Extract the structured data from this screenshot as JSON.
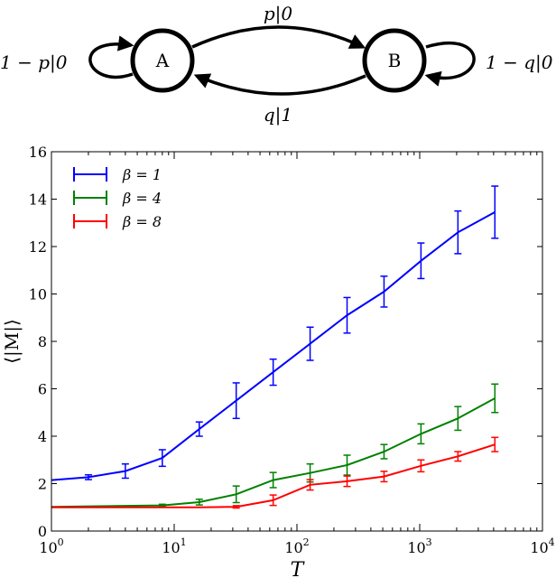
{
  "diagram": {
    "state_a": "A",
    "state_b": "B",
    "edge_ab": "p|0",
    "edge_ba": "q|1",
    "loop_a": "1 − p|0",
    "loop_b": "1 − q|0"
  },
  "chart_data": {
    "type": "line",
    "xscale": "log",
    "xlabel": "T",
    "ylabel": "⟨|M|⟩",
    "xlim": [
      1,
      10000
    ],
    "ylim": [
      0,
      16
    ],
    "yticks": [
      0,
      2,
      4,
      6,
      8,
      10,
      12,
      14,
      16
    ],
    "xticks": [
      {
        "value": 1,
        "base": "10",
        "exp": "0"
      },
      {
        "value": 10,
        "base": "10",
        "exp": "1"
      },
      {
        "value": 100,
        "base": "10",
        "exp": "2"
      },
      {
        "value": 1000,
        "base": "10",
        "exp": "3"
      },
      {
        "value": 10000,
        "base": "10",
        "exp": "4"
      }
    ],
    "grid": false,
    "legend": "top-left",
    "series": [
      {
        "name": "β = 1",
        "color": "#0000ff",
        "x": [
          1,
          2,
          4,
          8,
          16,
          32,
          64,
          128,
          256,
          512,
          1024,
          2048,
          4096
        ],
        "y": [
          2.15,
          2.27,
          2.53,
          3.08,
          4.3,
          5.5,
          6.7,
          7.9,
          9.1,
          10.1,
          11.4,
          12.6,
          13.45
        ],
        "err": [
          0.0,
          0.1,
          0.3,
          0.35,
          0.3,
          0.75,
          0.55,
          0.7,
          0.75,
          0.65,
          0.75,
          0.9,
          1.1
        ]
      },
      {
        "name": "β = 4",
        "color": "#008000",
        "x": [
          1,
          8,
          16,
          32,
          64,
          128,
          256,
          512,
          1024,
          2048,
          4096
        ],
        "y": [
          1.02,
          1.08,
          1.22,
          1.55,
          2.15,
          2.45,
          2.78,
          3.35,
          4.1,
          4.75,
          5.6
        ],
        "err": [
          0.0,
          0.05,
          0.12,
          0.35,
          0.32,
          0.38,
          0.42,
          0.3,
          0.42,
          0.5,
          0.6
        ]
      },
      {
        "name": "β = 8",
        "color": "#ff0000",
        "x": [
          1,
          16,
          32,
          64,
          128,
          256,
          512,
          1024,
          2048,
          4096
        ],
        "y": [
          1.0,
          1.0,
          1.02,
          1.3,
          1.95,
          2.1,
          2.3,
          2.75,
          3.15,
          3.65
        ],
        "err": [
          0.0,
          0.0,
          0.05,
          0.22,
          0.22,
          0.22,
          0.22,
          0.25,
          0.2,
          0.3
        ]
      }
    ]
  }
}
